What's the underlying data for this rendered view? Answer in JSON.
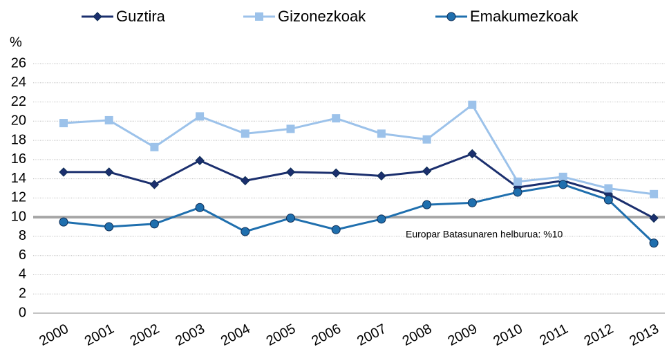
{
  "chart_data": {
    "type": "line",
    "y_label": "%",
    "categories": [
      "2000",
      "2001",
      "2002",
      "2003",
      "2004",
      "2005",
      "2006",
      "2007",
      "2008",
      "2009",
      "2010",
      "2011",
      "2012",
      "2013"
    ],
    "series": [
      {
        "name": "Guztira",
        "color": "#1b2f6e",
        "marker": "diamond",
        "values": [
          14.7,
          14.7,
          13.4,
          15.9,
          13.8,
          14.7,
          14.6,
          14.3,
          14.8,
          16.6,
          13.1,
          13.8,
          12.4,
          9.9
        ]
      },
      {
        "name": "Gizonezkoak",
        "color": "#9cc2ea",
        "marker": "square",
        "values": [
          19.8,
          20.1,
          17.3,
          20.5,
          18.7,
          19.2,
          20.3,
          18.7,
          18.1,
          21.7,
          13.7,
          14.2,
          13.0,
          12.4
        ]
      },
      {
        "name": "Emakumezkoak",
        "color": "#1f6fae",
        "marker": "circle",
        "values": [
          9.5,
          9.0,
          9.3,
          11.0,
          8.5,
          9.9,
          8.7,
          9.8,
          11.3,
          11.5,
          12.6,
          13.4,
          11.8,
          7.3
        ]
      }
    ],
    "reference": {
      "value": 10,
      "label": "Europar Batasunaren helburua: %10",
      "color": "#a6a6a6"
    },
    "ylim": [
      0,
      26
    ],
    "yticks": [
      0,
      2,
      4,
      6,
      8,
      10,
      12,
      14,
      16,
      18,
      20,
      22,
      24,
      26
    ],
    "grid": true,
    "legend": "top"
  }
}
